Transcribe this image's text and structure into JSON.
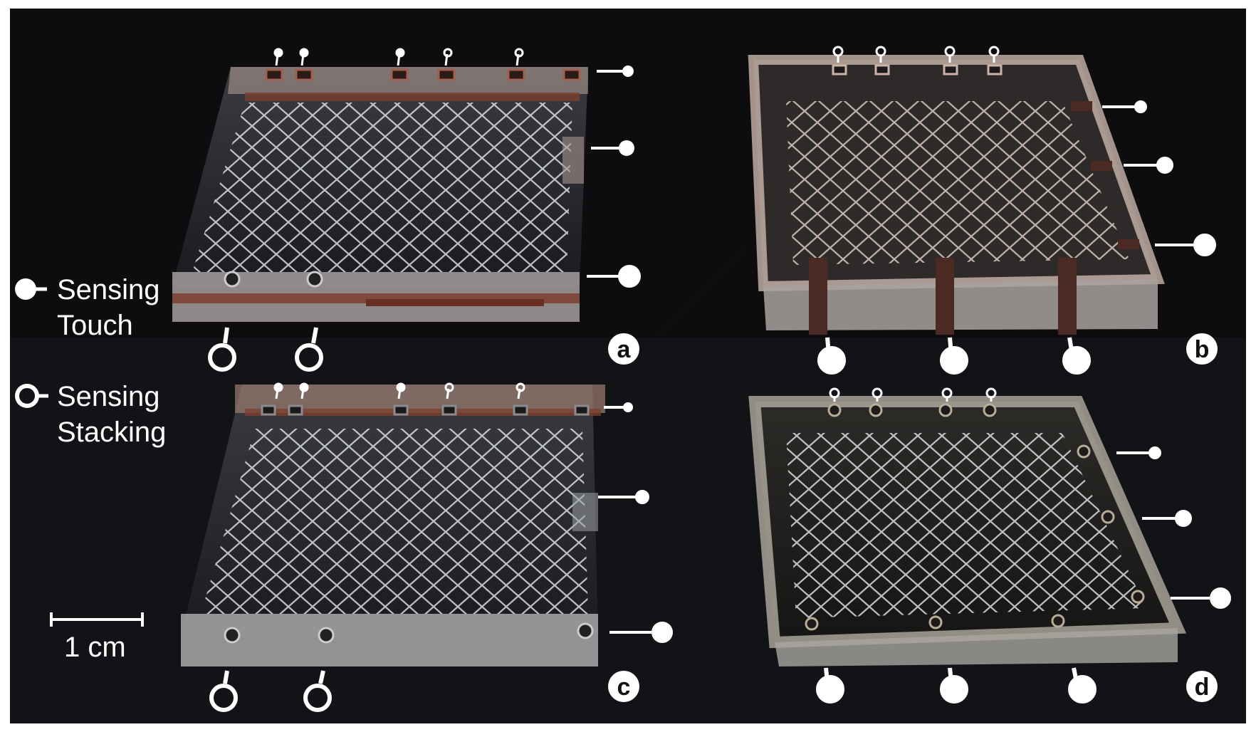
{
  "legend": {
    "touch_line1": "Sensing",
    "touch_line2": "Touch",
    "stack_line1": "Sensing",
    "stack_line2": "Stacking"
  },
  "scale_bar": {
    "label": "1 cm"
  },
  "panels": [
    {
      "id": "a",
      "label": "a"
    },
    {
      "id": "b",
      "label": "b"
    },
    {
      "id": "c",
      "label": "c"
    },
    {
      "id": "d",
      "label": "d"
    }
  ],
  "colors": {
    "background": "#0d0d0f",
    "acrylic": "#c9ccd2",
    "copper": "#8a4a3a",
    "marker": "#ffffff"
  }
}
